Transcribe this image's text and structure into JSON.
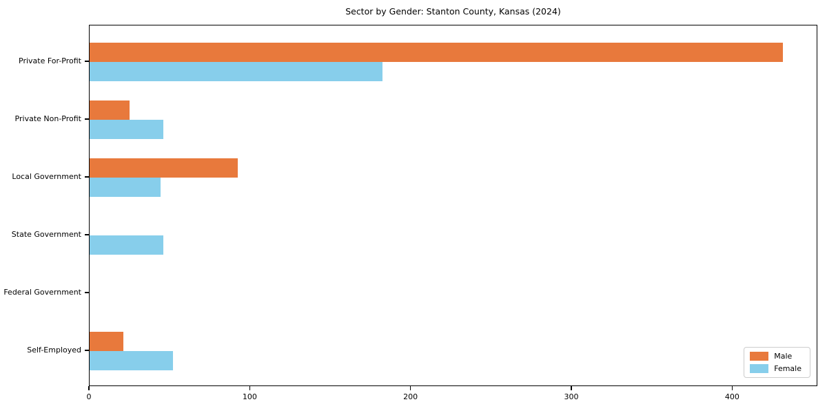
{
  "chart_data": {
    "type": "bar",
    "orientation": "horizontal",
    "title": "Sector by Gender: Stanton County, Kansas (2024)",
    "categories": [
      "Private For-Profit",
      "Private Non-Profit",
      "Local Government",
      "State Government",
      "Federal Government",
      "Self-Employed"
    ],
    "series": [
      {
        "name": "Male",
        "color": "#E8793C",
        "values": [
          431,
          25,
          92,
          0,
          0,
          21
        ]
      },
      {
        "name": "Female",
        "color": "#87CEEB",
        "values": [
          182,
          46,
          44,
          46,
          0,
          52
        ]
      }
    ],
    "xlabel": "",
    "ylabel": "",
    "xlim": [
      0,
      453
    ],
    "xticks": [
      0,
      100,
      200,
      300,
      400
    ],
    "grid": false,
    "legend": {
      "position": "lower right",
      "items": [
        "Male",
        "Female"
      ]
    }
  }
}
